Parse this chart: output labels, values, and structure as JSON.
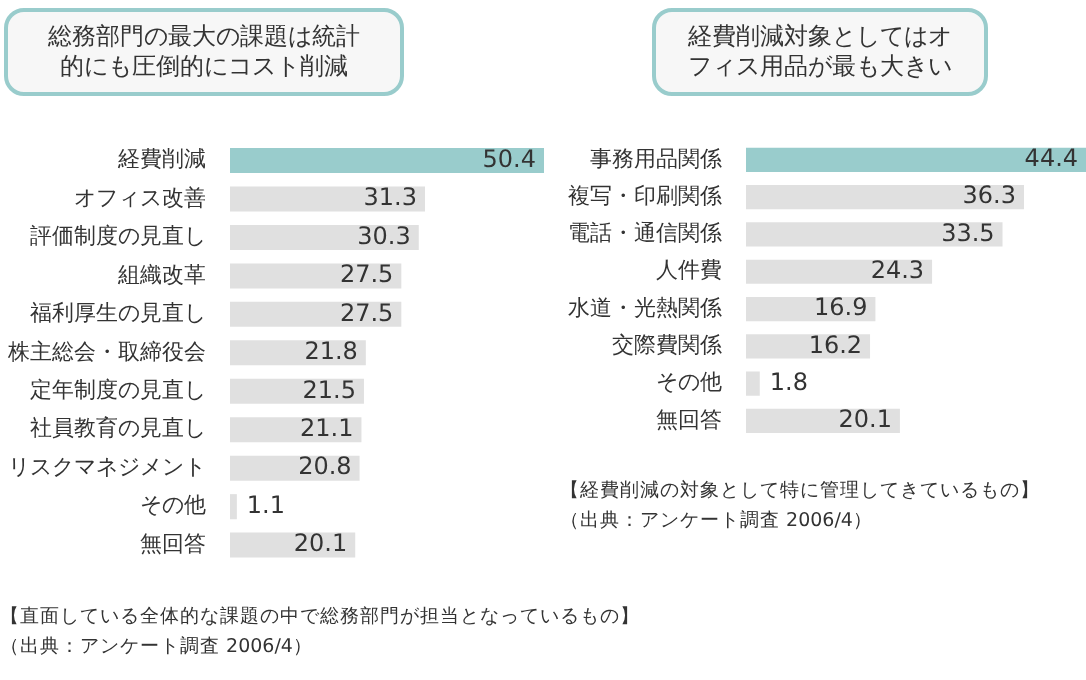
{
  "chart_data": [
    {
      "type": "bar",
      "orientation": "horizontal",
      "title": "総務部門の最大の課題は統計的にも圧倒的にコスト削減",
      "categories": [
        "経費削減",
        "オフィス改善",
        "評価制度の見直し",
        "組織改革",
        "福利厚生の見直し",
        "株主総会・取締役会",
        "定年制度の見直し",
        "社員教育の見直し",
        "リスクマネジメント",
        "その他",
        "無回答"
      ],
      "values": [
        50.4,
        31.3,
        30.3,
        27.5,
        27.5,
        21.8,
        21.5,
        21.1,
        20.8,
        1.1,
        20.1
      ],
      "colors": [
        "#99cccc",
        "#e0e0e0",
        "#e0e0e0",
        "#e0e0e0",
        "#e0e0e0",
        "#e0e0e0",
        "#e0e0e0",
        "#e0e0e0",
        "#e0e0e0",
        "#e0e0e0",
        "#e0e0e0"
      ],
      "data_labels": true,
      "annotations": [
        "【直面している全体的な課題の中で総務部門が担当となっているもの】",
        "（出典：アンケート調査 2006/4）"
      ]
    },
    {
      "type": "bar",
      "orientation": "horizontal",
      "title": "経費削減対象としてはオフィス用品が最も大きい",
      "categories": [
        "事務用品関係",
        "複写・印刷関係",
        "電話・通信関係",
        "人件費",
        "水道・光熱関係",
        "交際費関係",
        "その他",
        "無回答"
      ],
      "values": [
        44.4,
        36.3,
        33.5,
        24.3,
        16.9,
        16.2,
        1.8,
        20.1
      ],
      "colors": [
        "#99cccc",
        "#e0e0e0",
        "#e0e0e0",
        "#e0e0e0",
        "#e0e0e0",
        "#e0e0e0",
        "#e0e0e0",
        "#e0e0e0"
      ],
      "data_labels": true,
      "annotations": [
        "【経費削減の対象として特に管理してきているもの】",
        "（出典：アンケート調査 2006/4）"
      ]
    }
  ]
}
